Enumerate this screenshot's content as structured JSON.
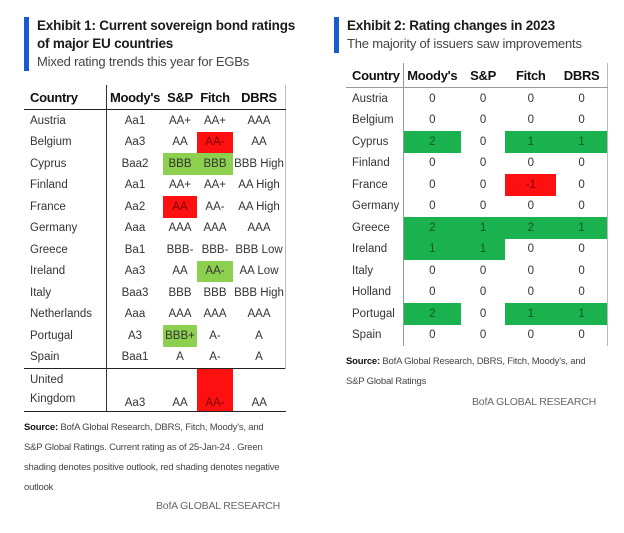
{
  "exhibit1": {
    "title_line1": "Exhibit 1: Current sovereign bond ratings",
    "title_line2": "of major EU countries",
    "subtitle": "Mixed rating trends this year for EGBs",
    "columns": [
      "Country",
      "Moody's",
      "S&P",
      "Fitch",
      "DBRS"
    ],
    "rows": [
      {
        "country": "Austria",
        "moodys": "Aa1",
        "sp": "AA+",
        "fitch": "AA+",
        "dbrs": "AAA",
        "shade": [
          "",
          "",
          "",
          ""
        ]
      },
      {
        "country": "Belgium",
        "moodys": "Aa3",
        "sp": "AA",
        "fitch": "AA-",
        "dbrs": "AA",
        "shade": [
          "",
          "",
          "negative",
          ""
        ]
      },
      {
        "country": "Cyprus",
        "moodys": "Baa2",
        "sp": "BBB",
        "fitch": "BBB",
        "dbrs": "BBB High",
        "shade": [
          "",
          "positive",
          "positive",
          ""
        ]
      },
      {
        "country": "Finland",
        "moodys": "Aa1",
        "sp": "AA+",
        "fitch": "AA+",
        "dbrs": "AA High",
        "shade": [
          "",
          "",
          "",
          ""
        ]
      },
      {
        "country": "France",
        "moodys": "Aa2",
        "sp": "AA",
        "fitch": "AA-",
        "dbrs": "AA High",
        "shade": [
          "",
          "negative",
          "",
          ""
        ]
      },
      {
        "country": "Germany",
        "moodys": "Aaa",
        "sp": "AAA",
        "fitch": "AAA",
        "dbrs": "AAA",
        "shade": [
          "",
          "",
          "",
          ""
        ]
      },
      {
        "country": "Greece",
        "moodys": "Ba1",
        "sp": "BBB-",
        "fitch": "BBB-",
        "dbrs": "BBB Low",
        "shade": [
          "",
          "",
          "",
          ""
        ]
      },
      {
        "country": "Ireland",
        "moodys": "Aa3",
        "sp": "AA",
        "fitch": "AA-",
        "dbrs": "AA Low",
        "shade": [
          "",
          "",
          "positive",
          ""
        ]
      },
      {
        "country": "Italy",
        "moodys": "Baa3",
        "sp": "BBB",
        "fitch": "BBB",
        "dbrs": "BBB High",
        "shade": [
          "",
          "",
          "",
          ""
        ]
      },
      {
        "country": "Netherlands",
        "moodys": "Aaa",
        "sp": "AAA",
        "fitch": "AAA",
        "dbrs": "AAA",
        "shade": [
          "",
          "",
          "",
          ""
        ]
      },
      {
        "country": "Portugal",
        "moodys": "A3",
        "sp": "BBB+",
        "fitch": "A-",
        "dbrs": "A",
        "shade": [
          "",
          "positive",
          "",
          ""
        ]
      },
      {
        "country": "Spain",
        "moodys": "Baa1",
        "sp": "A",
        "fitch": "A-",
        "dbrs": "A",
        "shade": [
          "",
          "",
          "",
          ""
        ]
      }
    ],
    "uk_row": {
      "country_line1": "United",
      "country_line2": "Kingdom",
      "moodys": "Aa3",
      "sp": "AA",
      "fitch": "AA-",
      "dbrs": "AA",
      "shade": [
        "",
        "",
        "negative",
        ""
      ]
    },
    "source_label": "Source:",
    "source_text": " BofA Global Research, DBRS, Fitch, Moody's, and S&P Global Ratings. Current rating as of 25-Jan-24 . Green shading denotes positive outlook, red shading denotes negative outlook",
    "brand": "BofA GLOBAL RESEARCH"
  },
  "exhibit2": {
    "title": "Exhibit 2: Rating changes in 2023",
    "subtitle": "The majority of issuers saw improvements",
    "columns": [
      "Country",
      "Moody's",
      "S&P",
      "Fitch",
      "DBRS"
    ],
    "rows": [
      {
        "country": "Austria",
        "values": [
          "0",
          "0",
          "0",
          "0"
        ]
      },
      {
        "country": "Belgium",
        "values": [
          "0",
          "0",
          "0",
          "0"
        ]
      },
      {
        "country": "Cyprus",
        "values": [
          "2",
          "0",
          "1",
          "1"
        ]
      },
      {
        "country": "Finland",
        "values": [
          "0",
          "0",
          "0",
          "0"
        ]
      },
      {
        "country": "France",
        "values": [
          "0",
          "0",
          "-1",
          "0"
        ]
      },
      {
        "country": "Germany",
        "values": [
          "0",
          "0",
          "0",
          "0"
        ]
      },
      {
        "country": "Greece",
        "values": [
          "2",
          "1",
          "2",
          "1"
        ]
      },
      {
        "country": "Ireland",
        "values": [
          "1",
          "1",
          "0",
          "0"
        ]
      },
      {
        "country": "Italy",
        "values": [
          "0",
          "0",
          "0",
          "0"
        ]
      },
      {
        "country": "Holland",
        "values": [
          "0",
          "0",
          "0",
          "0"
        ]
      },
      {
        "country": "Portugal",
        "values": [
          "2",
          "0",
          "1",
          "1"
        ]
      },
      {
        "country": "Spain",
        "values": [
          "0",
          "0",
          "0",
          "0"
        ]
      }
    ],
    "source_label": "Source:",
    "source_text": " BofA Global Research, DBRS, Fitch, Moody's, and S&P Global Ratings",
    "brand": "BofA GLOBAL RESEARCH"
  },
  "colors": {
    "accent_bar": "#1a5bd1",
    "positive_outlook": "#8dd04f",
    "negative_outlook": "#ff1010",
    "upgrade": "#19b24f",
    "downgrade": "#ff1010"
  }
}
